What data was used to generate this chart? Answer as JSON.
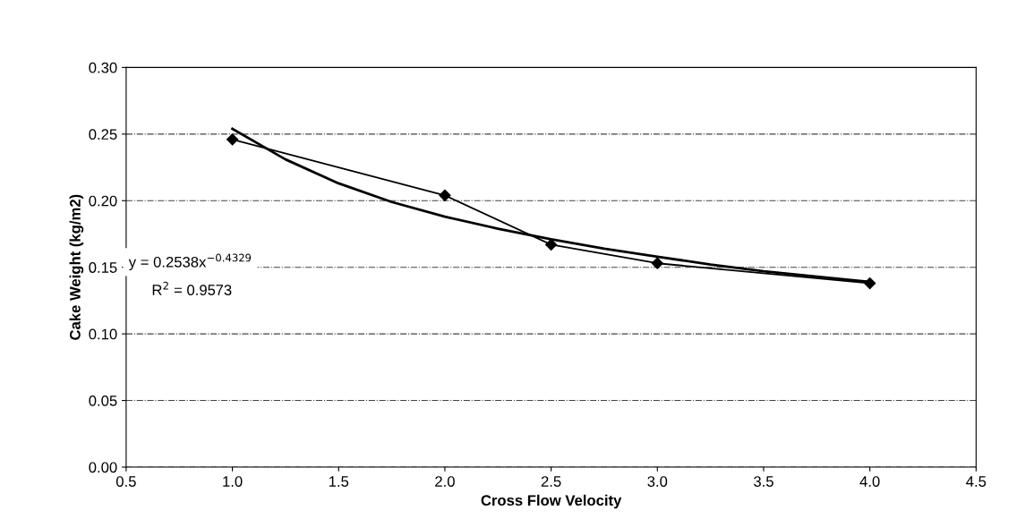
{
  "chart_data": {
    "type": "line",
    "xlabel": "Cross Flow Velocity",
    "ylabel": "Cake Weight (kg/m2)",
    "x": [
      1.0,
      2.0,
      2.5,
      3.0,
      4.0
    ],
    "series": [
      {
        "color": "#000000",
        "values": [
          0.246,
          0.204,
          0.167,
          0.153,
          0.138
        ],
        "marker": "diamond"
      },
      {
        "type": "line",
        "color": "#000000",
        "marker": "none",
        "x": [
          1.0,
          1.25,
          1.5,
          1.75,
          2.0,
          2.25,
          2.5,
          2.75,
          3.0,
          3.25,
          3.5,
          3.75,
          4.0
        ],
        "values": [
          0.254,
          0.231,
          0.213,
          0.199,
          0.188,
          0.179,
          0.171,
          0.164,
          0.158,
          0.152,
          0.147,
          0.143,
          0.139
        ]
      }
    ],
    "xlim": [
      0.5,
      4.5
    ],
    "xticks": [
      {
        "value": 0.5,
        "label": "0.5"
      },
      {
        "value": 1.0,
        "label": "1.0"
      },
      {
        "value": 1.5,
        "label": "1.5"
      },
      {
        "value": 2.0,
        "label": "2.0"
      },
      {
        "value": 2.5,
        "label": "2.5"
      },
      {
        "value": 3.0,
        "label": "3.0"
      },
      {
        "value": 3.5,
        "label": "3.5"
      },
      {
        "value": 4.0,
        "label": "4.0"
      },
      {
        "value": 4.5,
        "label": "4.5"
      }
    ],
    "ylim": [
      0,
      0.3
    ],
    "yticks": [
      {
        "value": 0,
        "label": "0.00"
      },
      {
        "value": 0.05,
        "label": "0.05"
      },
      {
        "value": 0.1,
        "label": "0.10"
      },
      {
        "value": 0.15,
        "label": "0.15"
      },
      {
        "value": 0.2,
        "label": "0.20"
      },
      {
        "value": 0.25,
        "label": "0.25"
      },
      {
        "value": 0.3,
        "label": "0.30"
      }
    ],
    "grid": "y",
    "legend": false,
    "annotations": [
      "y = 0.2538x$^{−0.4329}$",
      "R$^{2}$ = 0.9573"
    ]
  }
}
